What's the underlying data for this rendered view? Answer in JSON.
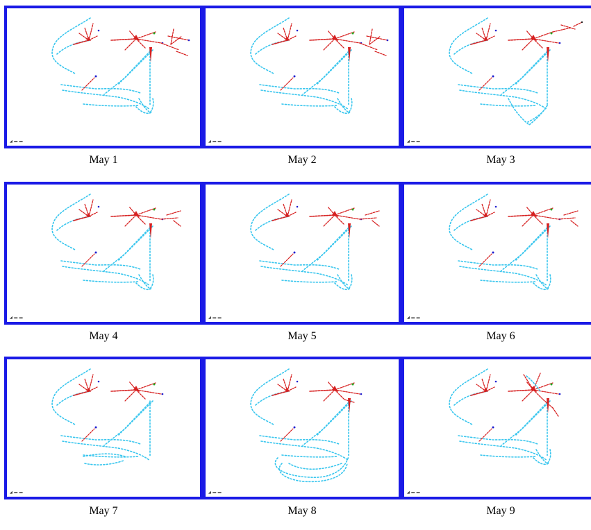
{
  "panels": [
    {
      "caption": "May 1",
      "variant": 1
    },
    {
      "caption": "May 2",
      "variant": 1
    },
    {
      "caption": "May 3",
      "variant": 3
    },
    {
      "caption": "May 4",
      "variant": 4
    },
    {
      "caption": "May 5",
      "variant": 4
    },
    {
      "caption": "May 6",
      "variant": 4
    },
    {
      "caption": "May 7",
      "variant": 7
    },
    {
      "caption": "May 8",
      "variant": 8
    },
    {
      "caption": "May 9",
      "variant": 9
    }
  ],
  "colors": {
    "frame": "#1a1ae6",
    "route": "#39c6ee",
    "flow": "#d62020",
    "accent_blue": "#2020d0",
    "accent_green": "#22aa22"
  }
}
